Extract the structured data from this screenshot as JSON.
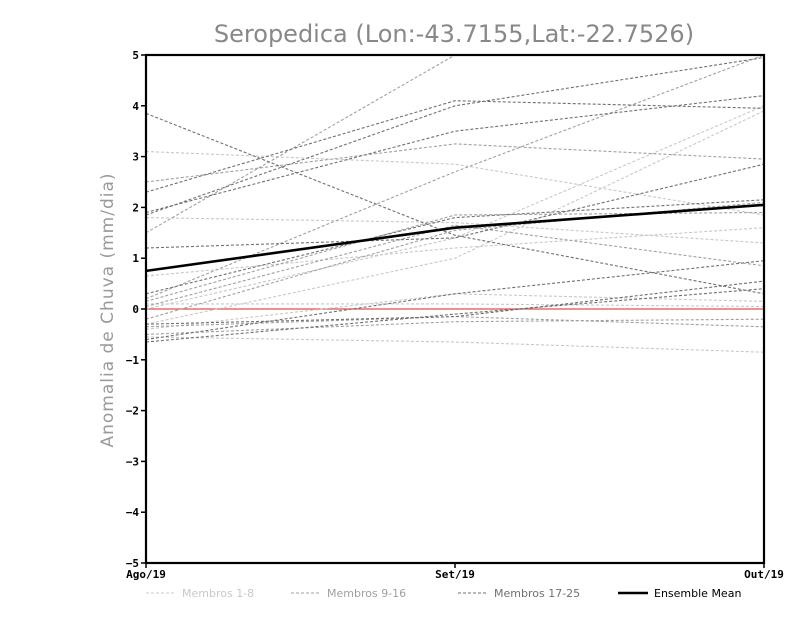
{
  "chart_data": {
    "type": "line",
    "title": "Seropedica (Lon:-43.7155,Lat:-22.7526)",
    "ylabel": "Anomalia de Chuva (mm/dia)",
    "xlabel": "",
    "categories": [
      "Ago/19",
      "Set/19",
      "Out/19"
    ],
    "ylim": [
      -5,
      5
    ],
    "yticks": [
      5,
      4,
      3,
      2,
      1,
      0,
      -1,
      -2,
      -3,
      -4,
      -5
    ],
    "grid": false,
    "legend_position": "bottom",
    "legend": [
      {
        "label": "Membros 1-8",
        "color": "#c8c8c8",
        "style": "dashed"
      },
      {
        "label": "Membros 9-16",
        "color": "#a0a0a0",
        "style": "dashed"
      },
      {
        "label": "Membros 17-25",
        "color": "#707070",
        "style": "dashed"
      },
      {
        "label": "Ensemble Mean",
        "color": "#000000",
        "style": "solid"
      }
    ],
    "zero_line_color": "#e05050",
    "groups": [
      {
        "label": "Membros 1-8",
        "color": "#c8c8c8",
        "members": [
          [
            3.1,
            2.85,
            1.85
          ],
          [
            1.8,
            1.7,
            1.3
          ],
          [
            -0.3,
            1.0,
            3.9
          ],
          [
            0.0,
            1.4,
            4.0
          ],
          [
            0.65,
            1.2,
            1.6
          ],
          [
            -0.4,
            0.3,
            0.15
          ],
          [
            -0.55,
            -0.65,
            -0.85
          ],
          [
            0.1,
            0.1,
            0.05
          ]
        ]
      },
      {
        "label": "Membros 9-16",
        "color": "#a0a0a0",
        "members": [
          [
            2.5,
            3.25,
            2.95
          ],
          [
            0.2,
            2.7,
            5.0
          ],
          [
            1.5,
            5.0,
            5.0
          ],
          [
            0.15,
            1.85,
            1.9
          ],
          [
            -0.2,
            1.55,
            2.1
          ],
          [
            -0.35,
            -0.15,
            -0.35
          ],
          [
            0.05,
            1.65,
            0.85
          ],
          [
            -0.5,
            -0.25,
            -0.2
          ]
        ]
      },
      {
        "label": "Membros 17-25",
        "color": "#707070",
        "members": [
          [
            2.3,
            4.1,
            3.95
          ],
          [
            1.9,
            3.5,
            4.2
          ],
          [
            1.85,
            4.0,
            4.95
          ],
          [
            3.85,
            1.45,
            0.3
          ],
          [
            1.2,
            1.4,
            2.85
          ],
          [
            0.3,
            1.8,
            2.15
          ],
          [
            -0.3,
            -0.15,
            0.55
          ],
          [
            -0.6,
            0.3,
            0.95
          ],
          [
            -0.65,
            -0.1,
            0.4
          ]
        ]
      }
    ],
    "series": [
      {
        "name": "Ensemble Mean",
        "values": [
          0.75,
          1.6,
          2.05
        ],
        "color": "#000000"
      }
    ]
  }
}
